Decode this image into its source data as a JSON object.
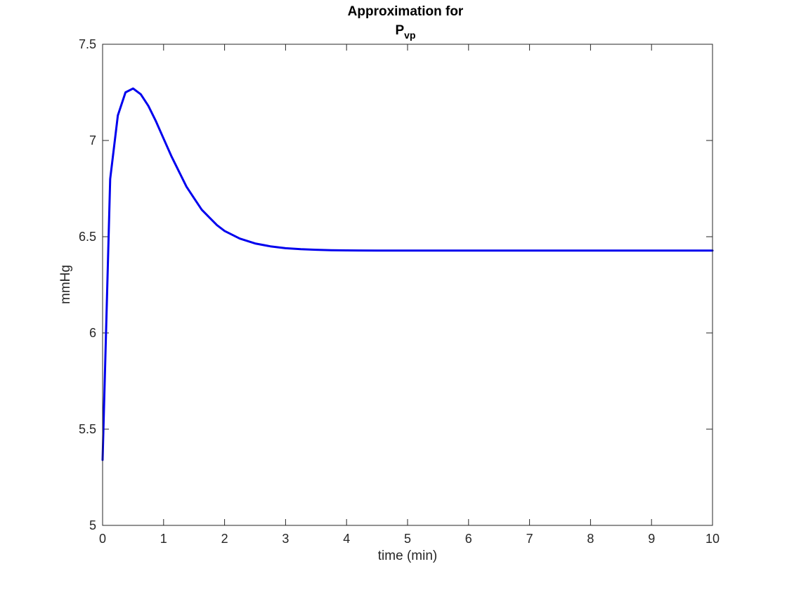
{
  "chart_data": {
    "type": "line",
    "title": "Approximation for",
    "title_line2_main": "P",
    "title_line2_sub": "vp",
    "xlabel": "time (min)",
    "ylabel": "mmHg",
    "xlim": [
      0,
      10
    ],
    "ylim": [
      5,
      7.5
    ],
    "xticks": [
      0,
      1,
      2,
      3,
      4,
      5,
      6,
      7,
      8,
      9,
      10
    ],
    "yticks": [
      5,
      5.5,
      6,
      6.5,
      7,
      7.5
    ],
    "xtick_labels": [
      "0",
      "1",
      "2",
      "3",
      "4",
      "5",
      "6",
      "7",
      "8",
      "9",
      "10"
    ],
    "ytick_labels": [
      "5",
      "5.5",
      "6",
      "6.5",
      "7",
      "7.5"
    ],
    "grid": false,
    "series": [
      {
        "color": "#0000ee",
        "x": [
          0,
          0.125,
          0.25,
          0.375,
          0.5,
          0.625,
          0.75,
          0.875,
          1.0,
          1.125,
          1.25,
          1.375,
          1.5,
          1.625,
          1.75,
          1.875,
          2.0,
          2.25,
          2.5,
          2.75,
          3.0,
          3.25,
          3.5,
          3.75,
          4.0,
          4.5,
          5.0,
          6.0,
          7.0,
          8.0,
          9.0,
          10.0
        ],
        "y": [
          5.34,
          6.8,
          7.13,
          7.25,
          7.27,
          7.24,
          7.18,
          7.1,
          7.01,
          6.92,
          6.84,
          6.76,
          6.7,
          6.64,
          6.6,
          6.56,
          6.53,
          6.49,
          6.465,
          6.45,
          6.44,
          6.435,
          6.432,
          6.43,
          6.429,
          6.428,
          6.428,
          6.428,
          6.428,
          6.428,
          6.428,
          6.428
        ]
      }
    ]
  }
}
